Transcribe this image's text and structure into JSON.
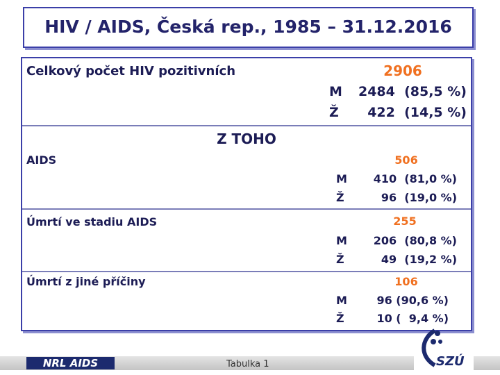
{
  "header": {
    "title": "HIV / AIDS, Česká rep., 1985 – 31.12.2016"
  },
  "total": {
    "label": "Celkový počet HIV pozitivních",
    "value": "2906",
    "rows": [
      {
        "sex": "M",
        "text": "2484  (85,5 %)"
      },
      {
        "sex": "Ž",
        "text": "422  (14,5 %)"
      }
    ]
  },
  "subheading": "Z TOHO",
  "sections": [
    {
      "label": "AIDS",
      "value": "506",
      "rows": [
        {
          "sex": "M",
          "text": "410  (81,0 %)"
        },
        {
          "sex": "Ž",
          "text": "96  (19,0 %)"
        }
      ]
    },
    {
      "label": "Úmrtí ve stadiu AIDS",
      "value": "255",
      "rows": [
        {
          "sex": "M",
          "text": "206  (80,8 %)"
        },
        {
          "sex": "Ž",
          "text": "49  (19,2 %)"
        }
      ]
    },
    {
      "label": "Úmrtí z jiné příčiny",
      "value": "106",
      "rows": [
        {
          "sex": "M",
          "text": "96 (90,6 %)"
        },
        {
          "sex": "Ž",
          "text": "10 (  9,4 %)"
        }
      ]
    }
  ],
  "footer": {
    "logo": "NRL AIDS",
    "caption": "Tabulka 1",
    "logo2": "SZÚ"
  }
}
